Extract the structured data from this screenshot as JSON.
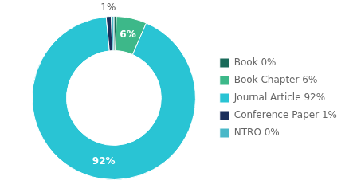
{
  "chart_data": {
    "type": "doughnut",
    "categories": [
      "Book 0%",
      "Book Chapter 6%",
      "Journal Article 92%",
      "Conference Paper 1%",
      "NTRO 0%"
    ],
    "values": [
      0.5,
      6,
      92,
      1,
      0.5
    ],
    "colors": [
      "#1a6b5a",
      "#3db889",
      "#29c4d4",
      "#1a2e5a",
      "#4ab8c8"
    ],
    "value_labels": [
      null,
      "6%",
      "92%",
      "1%",
      null
    ],
    "legend": "right"
  }
}
